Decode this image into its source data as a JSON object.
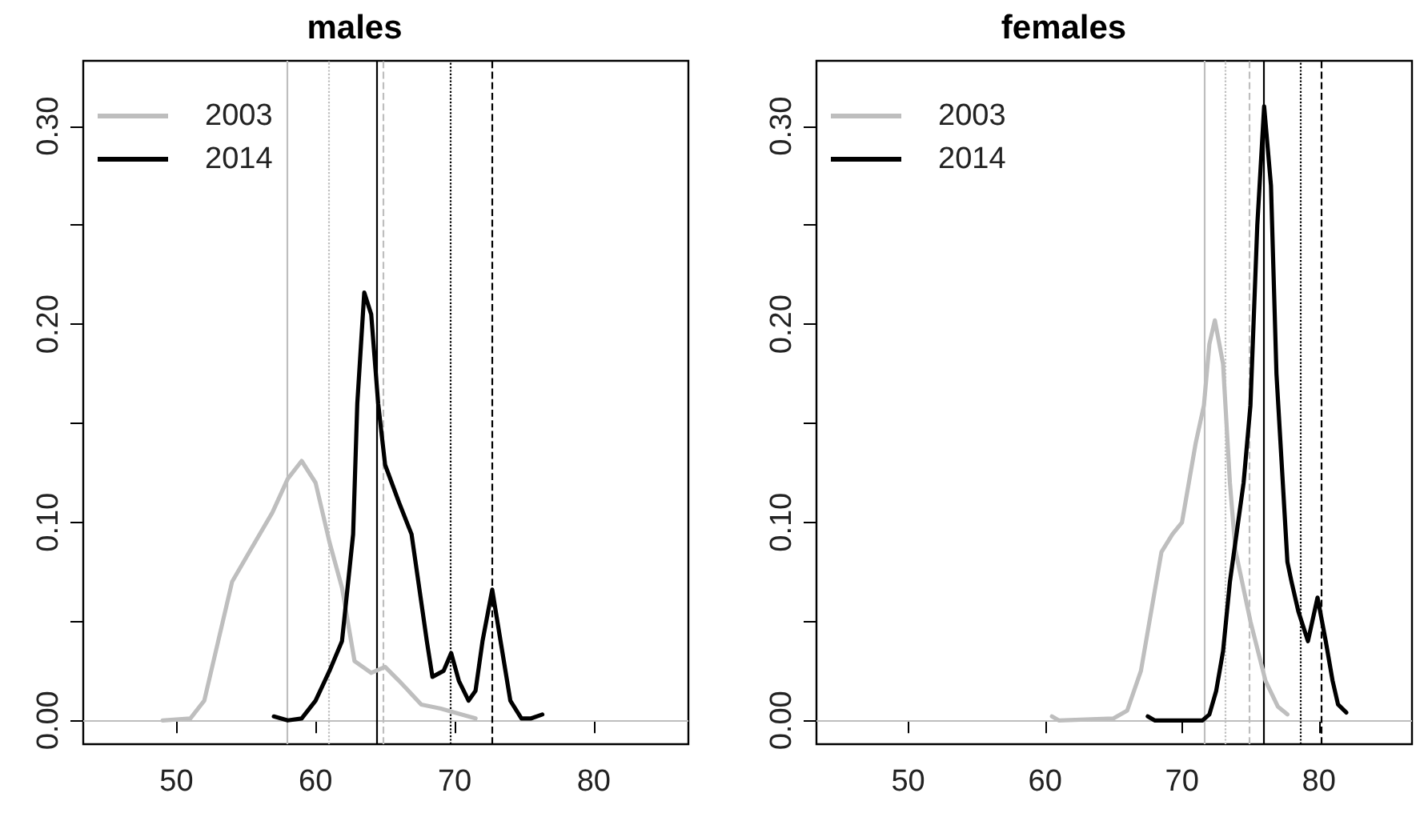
{
  "chart_data": [
    {
      "type": "line",
      "title": "males",
      "xlim": [
        43.3,
        86.8
      ],
      "ylim": [
        -0.012,
        0.333
      ],
      "xticks": [
        50,
        60,
        70,
        80
      ],
      "yticks": [
        {
          "value": 0,
          "label": "0.00"
        },
        {
          "value": 0.05,
          "label": null
        },
        {
          "value": 0.1,
          "label": "0.10"
        },
        {
          "value": 0.15,
          "label": null
        },
        {
          "value": 0.2,
          "label": "0.20"
        },
        {
          "value": 0.25,
          "label": null
        },
        {
          "value": 0.3,
          "label": "0.30"
        }
      ],
      "legend": "top left",
      "grid": false,
      "marker": "none",
      "line_style": "solid",
      "series": [
        {
          "name": "2003",
          "color": "#bebebe",
          "x": [
            49,
            51,
            52,
            53,
            54,
            55.4,
            56.9,
            58,
            59,
            60,
            61,
            61.9,
            62.8,
            64,
            65,
            66,
            67.6,
            69,
            70,
            71.5
          ],
          "values": [
            0,
            0.001,
            0.01,
            0.04,
            0.07,
            0.087,
            0.105,
            0.122,
            0.131,
            0.12,
            0.09,
            0.067,
            0.03,
            0.024,
            0.027,
            0.02,
            0.008,
            0.006,
            0.004,
            0.001
          ]
        },
        {
          "name": "2014",
          "color": "#000000",
          "x": [
            57,
            58,
            59,
            60,
            61,
            61.9,
            62.7,
            63,
            63.5,
            64,
            64.5,
            65,
            66,
            66.9,
            68,
            68.4,
            69.2,
            69.75,
            70.3,
            71,
            71.5,
            72,
            72.7,
            73.3,
            74,
            74.8,
            75.5,
            76.3
          ],
          "values": [
            0.002,
            0,
            0.001,
            0.01,
            0.025,
            0.04,
            0.094,
            0.16,
            0.216,
            0.205,
            0.16,
            0.129,
            0.11,
            0.094,
            0.04,
            0.022,
            0.025,
            0.034,
            0.02,
            0.01,
            0.015,
            0.04,
            0.066,
            0.04,
            0.01,
            0.001,
            0.001,
            0.003
          ]
        }
      ],
      "ref_lines": [
        {
          "axis": "y",
          "value": 0,
          "color": "#bebebe",
          "line_style": "solid"
        },
        {
          "axis": "x",
          "value": 58,
          "color": "#bebebe",
          "line_style": "solid"
        },
        {
          "axis": "x",
          "value": 60.9,
          "color": "#bebebe",
          "line_style": "dotted"
        },
        {
          "axis": "x",
          "value": 64.9,
          "color": "#bebebe",
          "line_style": "dashed"
        },
        {
          "axis": "x",
          "value": 64.4,
          "color": "#000000",
          "line_style": "solid"
        },
        {
          "axis": "x",
          "value": 69.7,
          "color": "#000000",
          "line_style": "dotted"
        },
        {
          "axis": "x",
          "value": 72.7,
          "color": "#000000",
          "line_style": "dashed"
        }
      ]
    },
    {
      "type": "line",
      "title": "females",
      "xlim": [
        43.3,
        86.8
      ],
      "ylim": [
        -0.012,
        0.333
      ],
      "xticks": [
        50,
        60,
        70,
        80
      ],
      "yticks": [
        {
          "value": 0,
          "label": "0.00"
        },
        {
          "value": 0.05,
          "label": null
        },
        {
          "value": 0.1,
          "label": "0.10"
        },
        {
          "value": 0.15,
          "label": null
        },
        {
          "value": 0.2,
          "label": "0.20"
        },
        {
          "value": 0.25,
          "label": null
        },
        {
          "value": 0.3,
          "label": "0.30"
        }
      ],
      "legend": "top left",
      "grid": false,
      "marker": "none",
      "line_style": "solid",
      "series": [
        {
          "name": "2003",
          "color": "#bebebe",
          "x": [
            60.5,
            61,
            65,
            66,
            67,
            68,
            68.5,
            69.3,
            70,
            70.5,
            71,
            71.6,
            72,
            72.4,
            73,
            73.5,
            73.9,
            75,
            76.1,
            77,
            77.7
          ],
          "values": [
            0.002,
            0,
            0.001,
            0.005,
            0.025,
            0.065,
            0.085,
            0.094,
            0.1,
            0.12,
            0.14,
            0.159,
            0.19,
            0.202,
            0.18,
            0.12,
            0.086,
            0.05,
            0.02,
            0.007,
            0.003
          ]
        },
        {
          "name": "2014",
          "color": "#000000",
          "x": [
            67.5,
            68,
            71.5,
            72,
            72.5,
            73,
            73.5,
            74,
            74.5,
            75,
            75.5,
            76,
            76.5,
            76.9,
            77.7,
            78,
            78.5,
            79.2,
            79.9,
            80.5,
            81,
            81.4,
            82
          ],
          "values": [
            0.002,
            0,
            0,
            0.003,
            0.015,
            0.035,
            0.07,
            0.095,
            0.12,
            0.159,
            0.25,
            0.31,
            0.27,
            0.175,
            0.08,
            0.07,
            0.055,
            0.04,
            0.062,
            0.04,
            0.02,
            0.008,
            0.004
          ]
        }
      ],
      "ref_lines": [
        {
          "axis": "y",
          "value": 0,
          "color": "#bebebe",
          "line_style": "solid"
        },
        {
          "axis": "x",
          "value": 71.6,
          "color": "#bebebe",
          "line_style": "solid"
        },
        {
          "axis": "x",
          "value": 73.1,
          "color": "#bebebe",
          "line_style": "dotted"
        },
        {
          "axis": "x",
          "value": 74.9,
          "color": "#bebebe",
          "line_style": "dashed"
        },
        {
          "axis": "x",
          "value": 76.0,
          "color": "#000000",
          "line_style": "solid"
        },
        {
          "axis": "x",
          "value": 78.6,
          "color": "#000000",
          "line_style": "dotted"
        },
        {
          "axis": "x",
          "value": 80.2,
          "color": "#000000",
          "line_style": "dashed"
        }
      ]
    }
  ]
}
